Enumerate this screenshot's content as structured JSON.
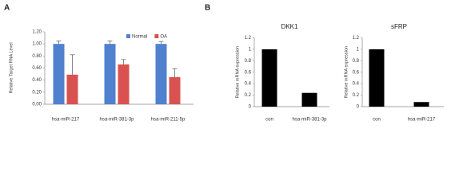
{
  "chart_data": [
    {
      "type": "bar",
      "panel_label": "A",
      "y_label": "Relative Target RNA Level",
      "categories": [
        "hsa-miR-217",
        "hsa-miR-381-3p",
        "hsa-miR-211-5p"
      ],
      "series": [
        {
          "name": "Normal",
          "color": "#4f81cf",
          "values": [
            1.0,
            1.0,
            1.0
          ],
          "errors": [
            0.05,
            0.05,
            0.04
          ]
        },
        {
          "name": "OA",
          "color": "#d9524f",
          "values": [
            0.49,
            0.66,
            0.45
          ],
          "errors": [
            0.33,
            0.08,
            0.14
          ]
        }
      ],
      "ylim": [
        0,
        1.2
      ],
      "yticks": [
        {
          "value": 0,
          "label": "0.00"
        },
        {
          "value": 0.2,
          "label": "0.20"
        },
        {
          "value": 0.4,
          "label": "0.40"
        },
        {
          "value": 0.6,
          "label": "0.60"
        },
        {
          "value": 0.8,
          "label": "0.80"
        },
        {
          "value": 1.0,
          "label": "1.00"
        },
        {
          "value": 1.2,
          "label": "1.20"
        }
      ],
      "legend_position": "top-right",
      "grid": false
    },
    {
      "type": "bar",
      "panel_label": "B",
      "title": "DKK1",
      "y_label": "Relative mRNA expression",
      "categories": [
        "con",
        "hsa-miR-381-3p"
      ],
      "values": [
        1.0,
        0.24
      ],
      "color": "#000000",
      "ylim": [
        0,
        1.2
      ],
      "yticks": [
        0,
        0.2,
        0.4,
        0.6,
        0.8,
        1,
        1.2
      ],
      "grid": false
    },
    {
      "type": "bar",
      "title": "sFRP",
      "y_label": "Relative mRNA expression",
      "categories": [
        "con",
        "hsa-miR-217"
      ],
      "values": [
        1.0,
        0.08
      ],
      "color": "#000000",
      "ylim": [
        0,
        1.2
      ],
      "yticks": [
        0,
        0.2,
        0.4,
        0.6,
        0.8,
        1,
        1.2
      ],
      "grid": false
    }
  ]
}
